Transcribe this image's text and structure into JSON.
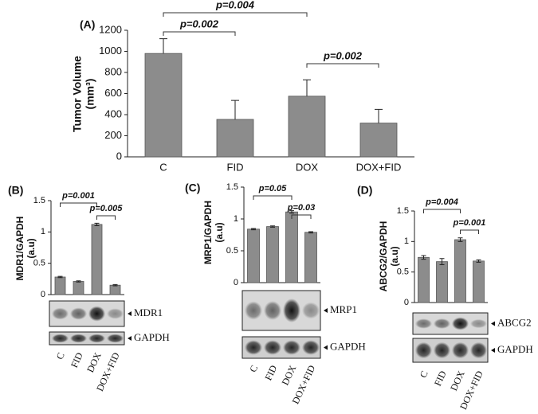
{
  "chart_data": [
    {
      "type": "bar",
      "label": "(A)",
      "ylabel": [
        "Tumor Volume",
        "(mm³)"
      ],
      "categories": [
        "C",
        "FID",
        "DOX",
        "DOX+FID"
      ],
      "values": [
        980,
        355,
        575,
        320
      ],
      "errors": [
        140,
        180,
        155,
        130
      ],
      "error_bars": "upper",
      "color": "#8c8c8c",
      "ylim": [
        0,
        1200
      ],
      "yticks": [
        0,
        200,
        400,
        600,
        800,
        1000,
        1200
      ],
      "annotations": [
        "p=0.002",
        "p=0.004",
        "p=0.002"
      ]
    },
    {
      "type": "bar",
      "label": "(B)",
      "ylabel": [
        "MDR1/GAPDH",
        "(a.u)"
      ],
      "categories": [
        "C",
        "FID",
        "DOX",
        "DOX+FID"
      ],
      "values": [
        0.28,
        0.21,
        1.12,
        0.15
      ],
      "errors": [
        0.01,
        0.01,
        0.02,
        0.01
      ],
      "error_bars": "both",
      "color": "#8c8c8c",
      "ylim": [
        0,
        1.5
      ],
      "yticks": [
        0,
        0.5,
        1,
        1.5
      ],
      "annotations": [
        "p=0.001",
        "p=0.005"
      ],
      "blots": [
        "MDR1",
        "GAPDH"
      ]
    },
    {
      "type": "bar",
      "label": "(C)",
      "ylabel": [
        "MRP1/GAPDH",
        "(a.u)"
      ],
      "categories": [
        "C",
        "FID",
        "DOX",
        "DOX+FID"
      ],
      "values": [
        0.84,
        0.88,
        1.11,
        0.79
      ],
      "errors": [
        0.01,
        0.01,
        0.02,
        0.01
      ],
      "error_bars": "both",
      "color": "#8c8c8c",
      "ylim": [
        0,
        1.5
      ],
      "yticks": [
        0,
        0.5,
        1,
        1.5
      ],
      "annotations": [
        "p=0.05",
        "p=0.03"
      ],
      "blots": [
        "MRP1",
        "GAPDH"
      ]
    },
    {
      "type": "bar",
      "label": "(D)",
      "ylabel": [
        "ABCG2/GAPDH",
        "(a.u)"
      ],
      "categories": [
        "C",
        "FID",
        "DOX",
        "DOX+FID"
      ],
      "values": [
        0.74,
        0.67,
        1.03,
        0.68
      ],
      "errors": [
        0.03,
        0.05,
        0.03,
        0.02
      ],
      "error_bars": "both",
      "color": "#8c8c8c",
      "ylim": [
        0,
        1.5
      ],
      "yticks": [
        0,
        0.5,
        1,
        1.5
      ],
      "annotations": [
        "p=0.004",
        "p=0.001"
      ],
      "blots": [
        "ABCG2",
        "GAPDH"
      ]
    }
  ]
}
